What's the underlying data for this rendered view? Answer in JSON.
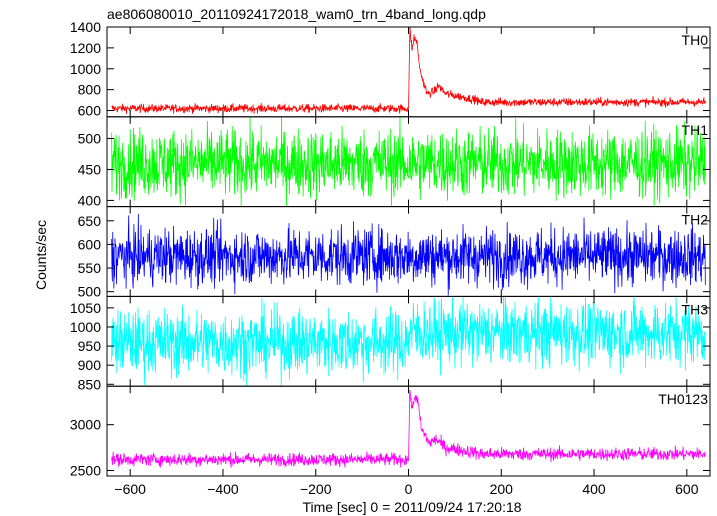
{
  "chart_data": {
    "type": "line",
    "title": "ae806080010_20110924172018_wam0_trn_4band_long.qdp",
    "xlabel": "Time [sec] 0 = 2011/09/24 17:20:18",
    "ylabel": "Counts/sec",
    "xlim": [
      -650,
      650
    ],
    "xticks": [
      -600,
      -400,
      -200,
      0,
      200,
      400,
      600
    ],
    "xtick_labels": [
      "−600",
      "−400",
      "−200",
      "0",
      "200",
      "400",
      "600"
    ],
    "grid": false,
    "panels": [
      {
        "name": "TH0",
        "color": "#ff0000",
        "ylim": [
          540,
          1400
        ],
        "yticks": [
          600,
          800,
          1000,
          1200,
          1400
        ],
        "ytick_labels": [
          "600",
          "800",
          "1000",
          "1200",
          "1400"
        ],
        "baseline": 620,
        "noise": 40,
        "late_baseline": 680,
        "burst": [
          [
            0,
            620
          ],
          [
            3,
            1380
          ],
          [
            8,
            1180
          ],
          [
            12,
            1300
          ],
          [
            18,
            1260
          ],
          [
            25,
            980
          ],
          [
            40,
            760
          ],
          [
            55,
            780
          ],
          [
            65,
            840
          ],
          [
            80,
            760
          ],
          [
            150,
            700
          ]
        ]
      },
      {
        "name": "TH1",
        "color": "#00ff00",
        "ylim": [
          390,
          535
        ],
        "yticks": [
          400,
          450,
          500
        ],
        "ytick_labels": [
          "400",
          "450",
          "500"
        ],
        "baseline": 460,
        "noise": 55,
        "late_baseline": 460,
        "burst": []
      },
      {
        "name": "TH2",
        "color": "#0000ff",
        "ylim": [
          490,
          680
        ],
        "yticks": [
          500,
          550,
          600,
          650
        ],
        "ytick_labels": [
          "500",
          "550",
          "600",
          "650"
        ],
        "baseline": 575,
        "noise": 60,
        "late_baseline": 575,
        "burst": []
      },
      {
        "name": "TH3",
        "color": "#00ffff",
        "ylim": [
          845,
          1080
        ],
        "yticks": [
          850,
          900,
          950,
          1000,
          1050
        ],
        "ytick_labels": [
          "850",
          "900",
          "950",
          "1000",
          "1050"
        ],
        "baseline": 960,
        "noise": 85,
        "late_baseline": 985,
        "burst": []
      },
      {
        "name": "TH0123",
        "color": "#ff00ff",
        "ylim": [
          2440,
          3420
        ],
        "yticks": [
          2500,
          3000
        ],
        "ytick_labels": [
          "2500",
          "3000"
        ],
        "baseline": 2620,
        "noise": 70,
        "late_baseline": 2680,
        "burst": [
          [
            0,
            2620
          ],
          [
            3,
            3400
          ],
          [
            8,
            3150
          ],
          [
            14,
            3330
          ],
          [
            20,
            3250
          ],
          [
            28,
            2950
          ],
          [
            45,
            2800
          ],
          [
            60,
            2840
          ],
          [
            80,
            2750
          ],
          [
            150,
            2690
          ]
        ]
      }
    ]
  }
}
